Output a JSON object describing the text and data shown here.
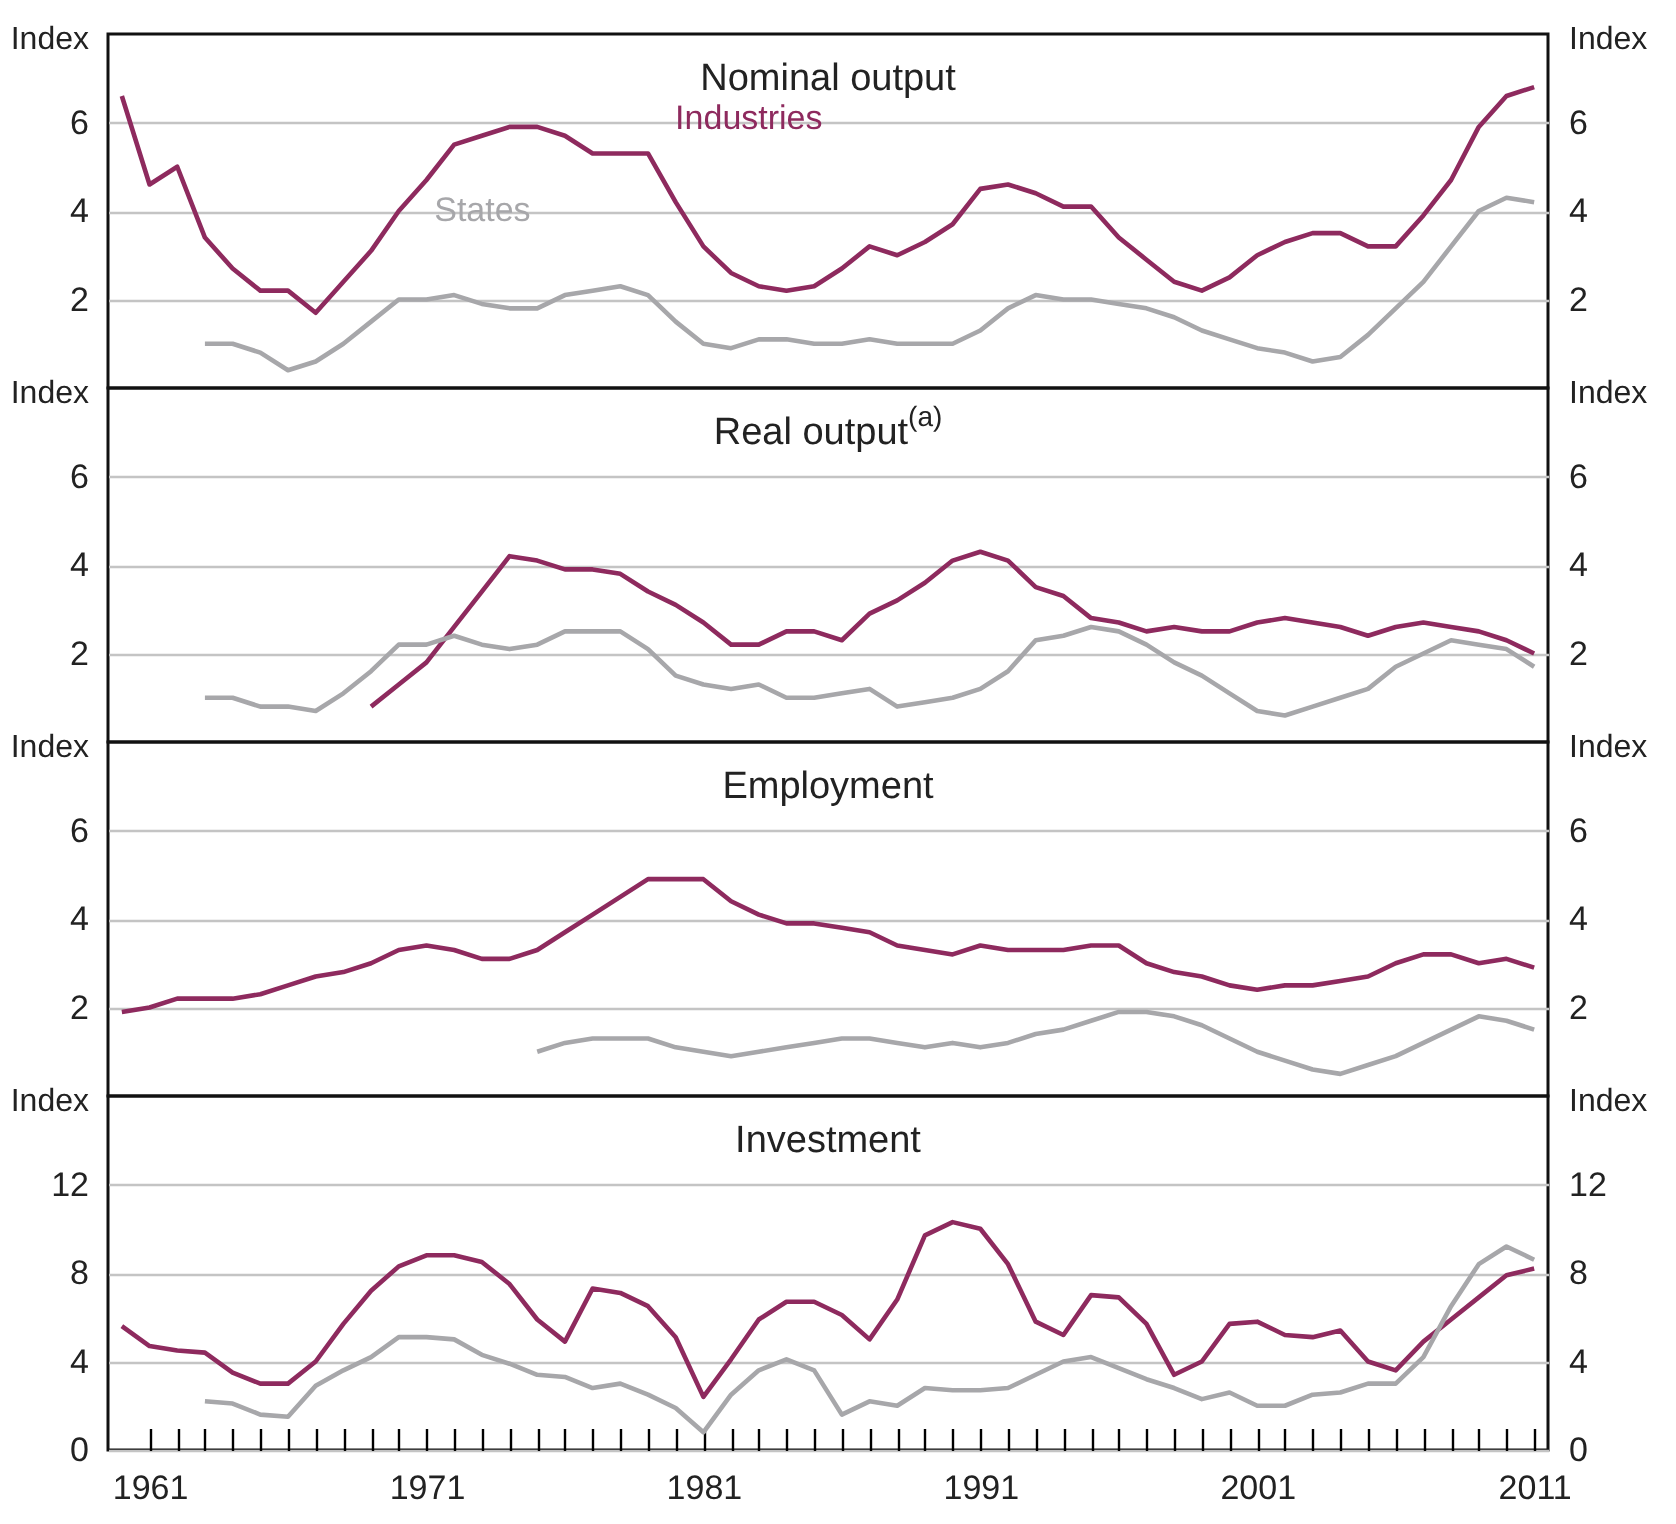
{
  "chart_data": [
    {
      "type": "line",
      "title": "Nominal output",
      "ylabel": "Index",
      "y2label": "Index",
      "x": [
        1960,
        1961,
        1962,
        1963,
        1964,
        1965,
        1966,
        1967,
        1968,
        1969,
        1970,
        1971,
        1972,
        1973,
        1974,
        1975,
        1976,
        1977,
        1978,
        1979,
        1980,
        1981,
        1982,
        1983,
        1984,
        1985,
        1986,
        1987,
        1988,
        1989,
        1990,
        1991,
        1992,
        1993,
        1994,
        1995,
        1996,
        1997,
        1998,
        1999,
        2000,
        2001,
        2002,
        2003,
        2004,
        2005,
        2006,
        2007,
        2008,
        2009,
        2010,
        2011
      ],
      "xlim": [
        1959.5,
        2011.5
      ],
      "ylim": [
        0,
        8
      ],
      "yticks": [
        2,
        4,
        6
      ],
      "y2lim": [
        0,
        8
      ],
      "y2ticks": [
        2,
        4,
        6
      ],
      "grid": "y",
      "tick_labels": "y",
      "series": [
        {
          "name": "Industries",
          "color": "#8e2a5e",
          "values": [
            6.6,
            4.6,
            5.0,
            3.4,
            2.7,
            2.2,
            2.2,
            1.7,
            2.4,
            3.1,
            4.0,
            4.7,
            5.5,
            5.7,
            5.9,
            5.9,
            5.7,
            5.3,
            5.3,
            5.3,
            4.2,
            3.2,
            2.6,
            2.3,
            2.2,
            2.3,
            2.7,
            3.2,
            3.0,
            3.3,
            3.7,
            4.5,
            4.6,
            4.4,
            4.1,
            4.1,
            3.4,
            2.9,
            2.4,
            2.2,
            2.5,
            3.0,
            3.3,
            3.5,
            3.5,
            3.2,
            3.2,
            3.9,
            4.7,
            5.9,
            6.6,
            6.8
          ]
        },
        {
          "name": "States",
          "color": "#a7a7aa",
          "values": [
            null,
            null,
            null,
            1.0,
            1.0,
            0.8,
            0.4,
            0.6,
            1.0,
            1.5,
            2.0,
            2.0,
            2.1,
            1.9,
            1.8,
            1.8,
            2.1,
            2.2,
            2.3,
            2.1,
            1.5,
            1.0,
            0.9,
            1.1,
            1.1,
            1.0,
            1.0,
            1.1,
            1.0,
            1.0,
            1.0,
            1.3,
            1.8,
            2.1,
            2.0,
            2.0,
            1.9,
            1.8,
            1.6,
            1.3,
            1.1,
            0.9,
            0.8,
            0.6,
            0.7,
            1.2,
            1.8,
            2.4,
            3.2,
            4.0,
            4.3,
            4.2
          ]
        }
      ]
    },
    {
      "type": "line",
      "title": "Real output$^{(a)}$",
      "ylabel": "Index",
      "y2label": "Index",
      "xlim": [
        1959.5,
        2011.5
      ],
      "ylim": [
        0,
        8
      ],
      "yticks": [
        2,
        4,
        6
      ],
      "y2lim": [
        0,
        8
      ],
      "y2ticks": [
        2,
        4,
        6
      ],
      "grid": "y",
      "tick_labels": "y",
      "series": [
        {
          "color": "#8e2a5e",
          "x": [
            1969,
            1970,
            1971,
            1972,
            1973,
            1974,
            1975,
            1976,
            1977,
            1978,
            1979,
            1980,
            1981,
            1982,
            1983,
            1984,
            1985,
            1986,
            1987,
            1988,
            1989,
            1990,
            1991,
            1992,
            1993,
            1994,
            1995,
            1996,
            1997,
            1998,
            1999,
            2000,
            2001,
            2002,
            2003,
            2004,
            2005,
            2006,
            2007,
            2008,
            2009,
            2010,
            2011
          ],
          "values": [
            0.8,
            1.3,
            1.8,
            2.6,
            3.4,
            4.2,
            4.1,
            3.9,
            3.9,
            3.8,
            3.4,
            3.1,
            2.7,
            2.2,
            2.2,
            2.5,
            2.5,
            2.3,
            2.9,
            3.2,
            3.6,
            4.1,
            4.3,
            4.1,
            3.5,
            3.3,
            2.8,
            2.7,
            2.5,
            2.6,
            2.5,
            2.5,
            2.7,
            2.8,
            2.7,
            2.6,
            2.4,
            2.6,
            2.7,
            2.6,
            2.5,
            2.3,
            2.0
          ]
        },
        {
          "color": "#a7a7aa",
          "x": [
            1963,
            1964,
            1965,
            1966,
            1967,
            1968,
            1969,
            1970,
            1971,
            1972,
            1973,
            1974,
            1975,
            1976,
            1977,
            1978,
            1979,
            1980,
            1981,
            1982,
            1983,
            1984,
            1985,
            1986,
            1987,
            1988,
            1989,
            1990,
            1991,
            1992,
            1993,
            1994,
            1995,
            1996,
            1997,
            1998,
            1999,
            2000,
            2001,
            2002,
            2003,
            2004,
            2005,
            2006,
            2007,
            2008,
            2009,
            2010,
            2011
          ],
          "values": [
            1.0,
            1.0,
            0.8,
            0.8,
            0.7,
            1.1,
            1.6,
            2.2,
            2.2,
            2.4,
            2.2,
            2.1,
            2.2,
            2.5,
            2.5,
            2.5,
            2.1,
            1.5,
            1.3,
            1.2,
            1.3,
            1.0,
            1.0,
            1.1,
            1.2,
            0.8,
            0.9,
            1.0,
            1.2,
            1.6,
            2.3,
            2.4,
            2.6,
            2.5,
            2.2,
            1.8,
            1.5,
            1.1,
            0.7,
            0.6,
            0.8,
            1.0,
            1.2,
            1.7,
            2.0,
            2.3,
            2.2,
            2.1,
            1.7
          ]
        }
      ]
    },
    {
      "type": "line",
      "title": "Employment",
      "ylabel": "Index",
      "y2label": "Index",
      "x": [
        1960,
        1961,
        1962,
        1963,
        1964,
        1965,
        1966,
        1967,
        1968,
        1969,
        1970,
        1971,
        1972,
        1973,
        1974,
        1975,
        1976,
        1977,
        1978,
        1979,
        1980,
        1981,
        1982,
        1983,
        1984,
        1985,
        1986,
        1987,
        1988,
        1989,
        1990,
        1991,
        1992,
        1993,
        1994,
        1995,
        1996,
        1997,
        1998,
        1999,
        2000,
        2001,
        2002,
        2003,
        2004,
        2005,
        2006,
        2007,
        2008,
        2009,
        2010,
        2011
      ],
      "xlim": [
        1959.5,
        2011.5
      ],
      "ylim": [
        0,
        8
      ],
      "yticks": [
        2,
        4,
        6
      ],
      "y2lim": [
        0,
        8
      ],
      "y2ticks": [
        2,
        4,
        6
      ],
      "grid": "y",
      "tick_labels": "y",
      "series": [
        {
          "color": "#8e2a5e",
          "values": [
            1.9,
            2.0,
            2.2,
            2.2,
            2.2,
            2.3,
            2.5,
            2.7,
            2.8,
            3.0,
            3.3,
            3.4,
            3.3,
            3.1,
            3.1,
            3.3,
            3.7,
            4.1,
            4.5,
            4.9,
            4.9,
            4.9,
            4.4,
            4.1,
            3.9,
            3.9,
            3.8,
            3.7,
            3.4,
            3.3,
            3.2,
            3.4,
            3.3,
            3.3,
            3.3,
            3.4,
            3.4,
            3.0,
            2.8,
            2.7,
            2.5,
            2.4,
            2.5,
            2.5,
            2.6,
            2.7,
            3.0,
            3.2,
            3.2,
            3.0,
            3.1,
            2.9
          ]
        },
        {
          "color": "#a7a7aa",
          "values": [
            null,
            null,
            null,
            null,
            null,
            null,
            null,
            null,
            null,
            null,
            null,
            null,
            null,
            null,
            null,
            1.0,
            1.2,
            1.3,
            1.3,
            1.3,
            1.1,
            1.0,
            0.9,
            1.0,
            1.1,
            1.2,
            1.3,
            1.3,
            1.2,
            1.1,
            1.2,
            1.1,
            1.2,
            1.4,
            1.5,
            1.7,
            1.9,
            1.9,
            1.8,
            1.6,
            1.3,
            1.0,
            0.8,
            0.6,
            0.5,
            0.7,
            0.9,
            1.2,
            1.5,
            1.8,
            1.7,
            1.5
          ]
        }
      ]
    },
    {
      "type": "line",
      "title": "Investment",
      "ylabel": "Index",
      "y2label": "Index",
      "x": [
        1960,
        1961,
        1962,
        1963,
        1964,
        1965,
        1966,
        1967,
        1968,
        1969,
        1970,
        1971,
        1972,
        1973,
        1974,
        1975,
        1976,
        1977,
        1978,
        1979,
        1980,
        1981,
        1982,
        1983,
        1984,
        1985,
        1986,
        1987,
        1988,
        1989,
        1990,
        1991,
        1992,
        1993,
        1994,
        1995,
        1996,
        1997,
        1998,
        1999,
        2000,
        2001,
        2002,
        2003,
        2004,
        2005,
        2006,
        2007,
        2008,
        2009,
        2010,
        2011
      ],
      "xlim": [
        1959.5,
        2011.5
      ],
      "ylim": [
        0,
        16
      ],
      "yticks": [
        0,
        4,
        8,
        12
      ],
      "y2lim": [
        0,
        16
      ],
      "y2ticks": [
        0,
        4,
        8,
        12
      ],
      "grid": "y",
      "xticks": [
        {
          "value": 1961,
          "label": "1961"
        },
        {
          "value": 1962,
          "label": null
        },
        {
          "value": 1963,
          "label": null
        },
        {
          "value": 1964,
          "label": null
        },
        {
          "value": 1965,
          "label": null
        },
        {
          "value": 1966,
          "label": null
        },
        {
          "value": 1967,
          "label": null
        },
        {
          "value": 1968,
          "label": null
        },
        {
          "value": 1969,
          "label": null
        },
        {
          "value": 1970,
          "label": null
        },
        {
          "value": 1971,
          "label": "1971"
        },
        {
          "value": 1972,
          "label": null
        },
        {
          "value": 1973,
          "label": null
        },
        {
          "value": 1974,
          "label": null
        },
        {
          "value": 1975,
          "label": null
        },
        {
          "value": 1976,
          "label": null
        },
        {
          "value": 1977,
          "label": null
        },
        {
          "value": 1978,
          "label": null
        },
        {
          "value": 1979,
          "label": null
        },
        {
          "value": 1980,
          "label": null
        },
        {
          "value": 1981,
          "label": "1981"
        },
        {
          "value": 1982,
          "label": null
        },
        {
          "value": 1983,
          "label": null
        },
        {
          "value": 1984,
          "label": null
        },
        {
          "value": 1985,
          "label": null
        },
        {
          "value": 1986,
          "label": null
        },
        {
          "value": 1987,
          "label": null
        },
        {
          "value": 1988,
          "label": null
        },
        {
          "value": 1989,
          "label": null
        },
        {
          "value": 1990,
          "label": null
        },
        {
          "value": 1991,
          "label": "1991"
        },
        {
          "value": 1992,
          "label": null
        },
        {
          "value": 1993,
          "label": null
        },
        {
          "value": 1994,
          "label": null
        },
        {
          "value": 1995,
          "label": null
        },
        {
          "value": 1996,
          "label": null
        },
        {
          "value": 1997,
          "label": null
        },
        {
          "value": 1998,
          "label": null
        },
        {
          "value": 1999,
          "label": null
        },
        {
          "value": 2000,
          "label": null
        },
        {
          "value": 2001,
          "label": "2001"
        },
        {
          "value": 2002,
          "label": null
        },
        {
          "value": 2003,
          "label": null
        },
        {
          "value": 2004,
          "label": null
        },
        {
          "value": 2005,
          "label": null
        },
        {
          "value": 2006,
          "label": null
        },
        {
          "value": 2007,
          "label": null
        },
        {
          "value": 2008,
          "label": null
        },
        {
          "value": 2009,
          "label": null
        },
        {
          "value": 2010,
          "label": null
        },
        {
          "value": 2011,
          "label": "2011"
        }
      ],
      "series": [
        {
          "color": "#8e2a5e",
          "values": [
            5.6,
            4.7,
            4.5,
            4.4,
            3.5,
            3.0,
            3.0,
            4.0,
            5.7,
            7.2,
            8.3,
            8.8,
            8.8,
            8.5,
            7.5,
            5.9,
            4.9,
            7.3,
            7.1,
            6.5,
            5.1,
            2.4,
            4.1,
            5.9,
            6.7,
            6.7,
            6.1,
            5.0,
            6.8,
            9.7,
            10.3,
            10.0,
            8.4,
            5.8,
            5.2,
            7.0,
            6.9,
            5.7,
            3.4,
            4.0,
            5.7,
            5.8,
            5.2,
            5.1,
            5.4,
            4.0,
            3.6,
            4.9,
            5.9,
            6.9,
            7.9,
            8.2
          ]
        },
        {
          "color": "#a7a7aa",
          "values": [
            null,
            null,
            null,
            2.2,
            2.1,
            1.6,
            1.5,
            2.9,
            3.6,
            4.2,
            5.1,
            5.1,
            5.0,
            4.3,
            3.9,
            3.4,
            3.3,
            2.8,
            3.0,
            2.5,
            1.9,
            0.8,
            2.5,
            3.6,
            4.1,
            3.6,
            1.6,
            2.2,
            2.0,
            2.8,
            2.7,
            2.7,
            2.8,
            3.4,
            4.0,
            4.2,
            3.7,
            3.2,
            2.8,
            2.3,
            2.6,
            2.0,
            2.0,
            2.5,
            2.6,
            3.0,
            3.0,
            4.2,
            6.5,
            8.4,
            9.2,
            8.6
          ]
        }
      ]
    }
  ]
}
